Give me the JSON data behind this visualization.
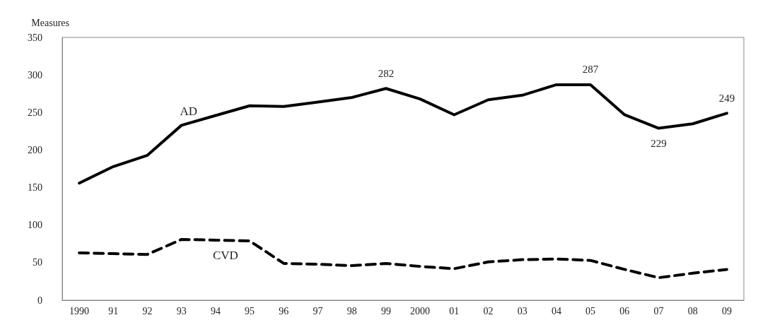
{
  "chart_data": {
    "type": "line",
    "ylabel": "Measures",
    "categories": [
      "1990",
      "91",
      "92",
      "93",
      "94",
      "95",
      "96",
      "97",
      "98",
      "99",
      "2000",
      "01",
      "02",
      "03",
      "04",
      "05",
      "06",
      "07",
      "08",
      "09"
    ],
    "series": [
      {
        "name": "AD",
        "color": "#000000",
        "line_style": "solid",
        "values": [
          156,
          178,
          193,
          233,
          246,
          259,
          258,
          264,
          270,
          282,
          268,
          247,
          267,
          273,
          287,
          287,
          247,
          229,
          235,
          249
        ],
        "value_labels": [
          null,
          null,
          null,
          null,
          null,
          null,
          null,
          null,
          null,
          "282",
          null,
          null,
          null,
          null,
          null,
          "287",
          null,
          "229",
          null,
          "249"
        ]
      },
      {
        "name": "CVD",
        "color": "#000000",
        "line_style": "dashed",
        "values": [
          63,
          62,
          61,
          81,
          80,
          79,
          49,
          48,
          46,
          49,
          45,
          42,
          51,
          54,
          55,
          53,
          41,
          30,
          36,
          41
        ]
      }
    ],
    "ylim": [
      0,
      350
    ],
    "yticks": [
      0,
      50,
      100,
      150,
      200,
      250,
      300,
      350
    ],
    "grid": false,
    "legend": false,
    "marker": "none"
  }
}
